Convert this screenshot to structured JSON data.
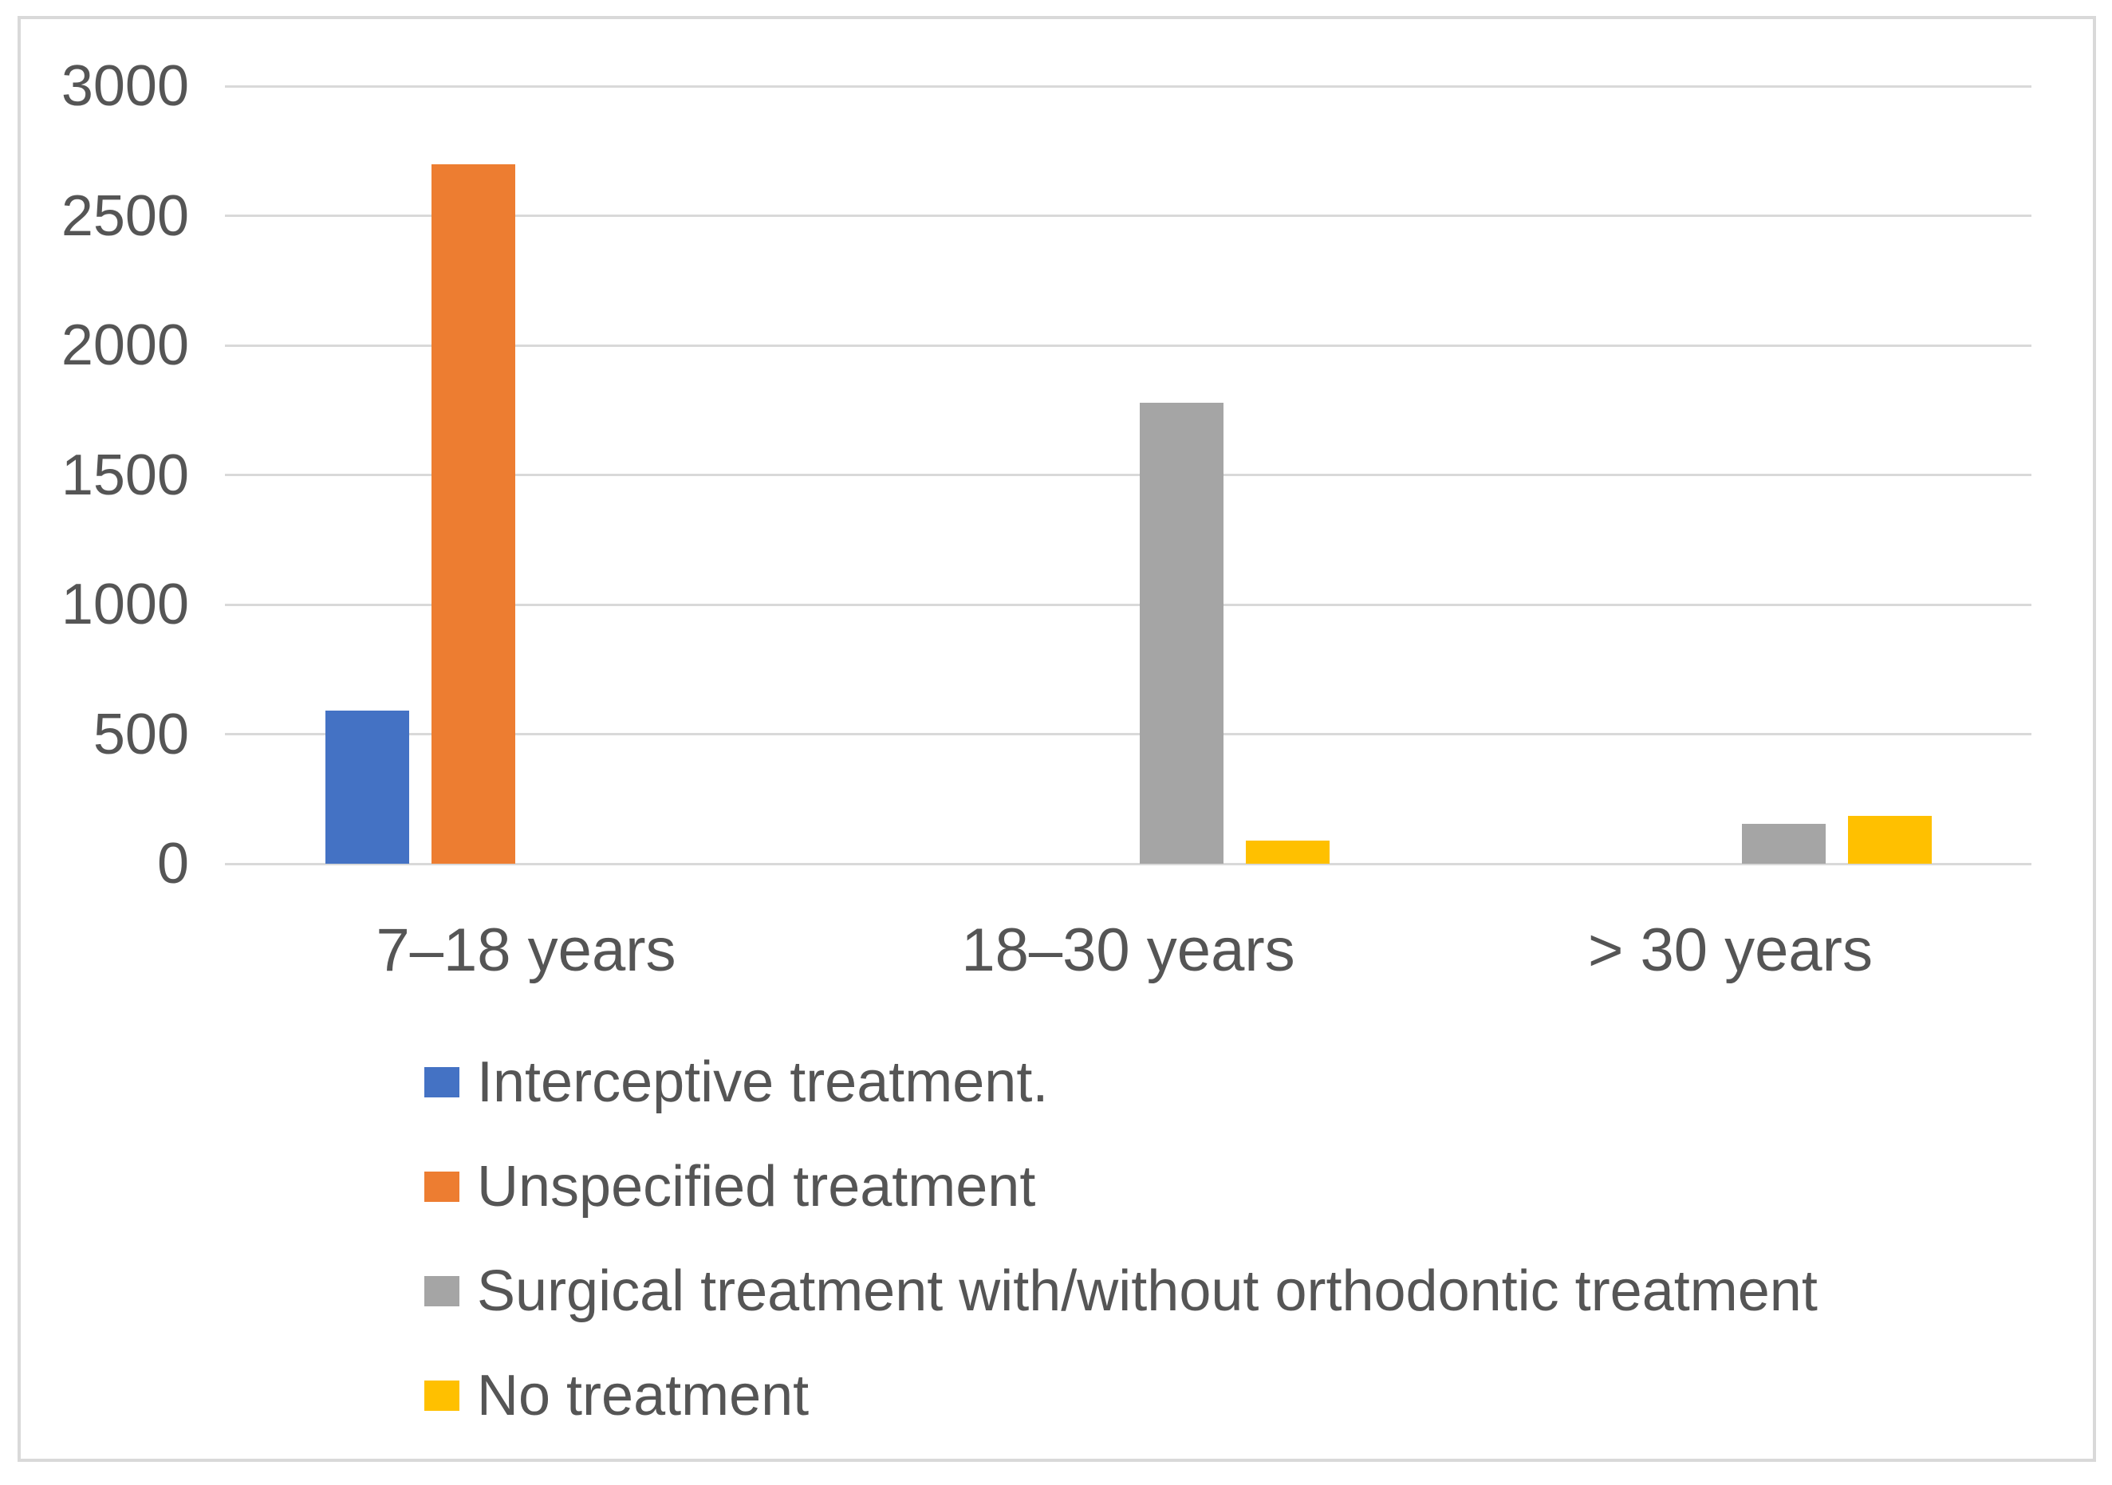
{
  "chart_data": {
    "type": "bar",
    "title": "",
    "xlabel": "",
    "ylabel": "",
    "categories": [
      "7–18 years",
      "18–30 years",
      "> 30 years"
    ],
    "series": [
      {
        "name": "Interceptive treatment.",
        "color": "#4472C4",
        "values": [
          590,
          0,
          0
        ]
      },
      {
        "name": "Unspecified treatment",
        "color": "#ED7D31",
        "values": [
          2700,
          0,
          0
        ]
      },
      {
        "name": "Surgical treatment with/without orthodontic treatment",
        "color": "#A5A5A5",
        "values": [
          0,
          1780,
          155
        ]
      },
      {
        "name": "No treatment",
        "color": "#FFC000",
        "values": [
          0,
          90,
          185
        ]
      }
    ],
    "y_ticks": [
      3000,
      2500,
      2000,
      1500,
      1000,
      500,
      0
    ],
    "ylim": [
      0,
      3000
    ],
    "grid": "horizontal",
    "legend_position": "bottom-left"
  },
  "colors": {
    "background": "#ffffff",
    "frame_border": "#d9d9d9",
    "gridline": "#d9d9d9",
    "axis_text": "#555555"
  }
}
